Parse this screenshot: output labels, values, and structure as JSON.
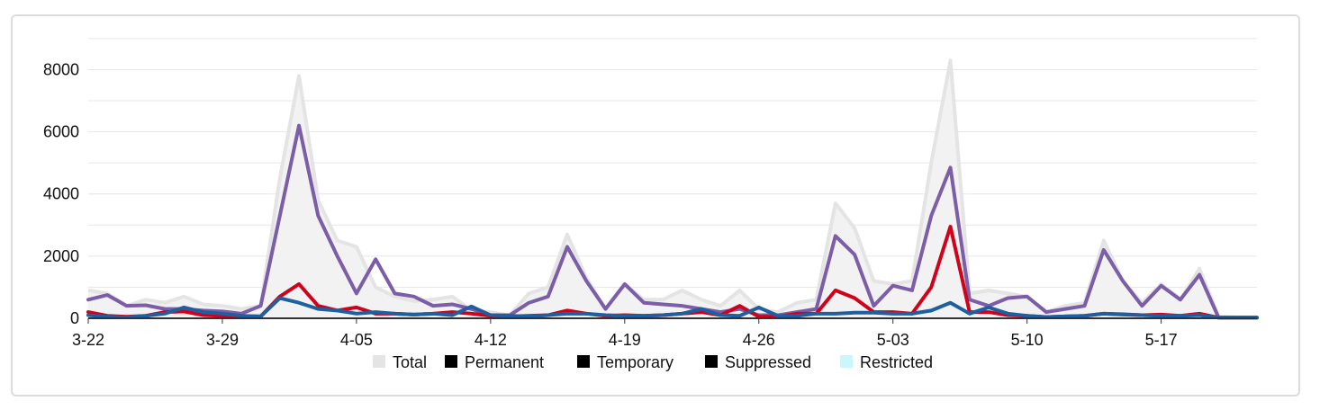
{
  "chart_data": {
    "type": "area",
    "categories": [
      "3-22",
      "3-23",
      "3-24",
      "3-25",
      "3-26",
      "3-27",
      "3-28",
      "3-29",
      "3-30",
      "3-31",
      "4-01",
      "4-02",
      "4-03",
      "4-04",
      "4-05",
      "4-06",
      "4-07",
      "4-08",
      "4-09",
      "4-10",
      "4-11",
      "4-12",
      "4-13",
      "4-14",
      "4-15",
      "4-16",
      "4-17",
      "4-18",
      "4-19",
      "4-20",
      "4-21",
      "4-22",
      "4-23",
      "4-24",
      "4-25",
      "4-26",
      "4-27",
      "4-28",
      "4-29",
      "4-30",
      "5-01",
      "5-02",
      "5-03",
      "5-04",
      "5-05",
      "5-06",
      "5-07",
      "5-08",
      "5-09",
      "5-10",
      "5-11",
      "5-12",
      "5-13",
      "5-14",
      "5-15",
      "5-16",
      "5-17",
      "5-18",
      "5-19",
      "5-20",
      "5-21",
      "5-22"
    ],
    "x_tick_labels": [
      "3-22",
      "3-29",
      "4-05",
      "4-12",
      "4-19",
      "4-26",
      "5-03",
      "5-10",
      "5-17"
    ],
    "x_tick_index": [
      0,
      7,
      14,
      21,
      28,
      35,
      42,
      49,
      56
    ],
    "y_ticks": [
      "0",
      "2000",
      "4000",
      "6000",
      "8000"
    ],
    "ylim": [
      0,
      9200
    ],
    "grid": true,
    "legend_position": "bottom",
    "series": [
      {
        "name": "Total",
        "color": "#e4e4e4",
        "style": "area",
        "values": [
          900,
          800,
          400,
          600,
          500,
          700,
          450,
          400,
          300,
          400,
          4500,
          7800,
          3800,
          2500,
          2300,
          1000,
          700,
          550,
          600,
          700,
          250,
          200,
          100,
          800,
          1000,
          2700,
          1300,
          300,
          1100,
          600,
          600,
          900,
          600,
          400,
          900,
          300,
          200,
          500,
          600,
          3700,
          2900,
          1200,
          1100,
          1200,
          5000,
          8300,
          800,
          900,
          800,
          700,
          200,
          400,
          500,
          2500,
          1200,
          500,
          1100,
          600,
          1600,
          50,
          30,
          30
        ]
      },
      {
        "name": "Permanent",
        "color": "#000000",
        "style": "hidden",
        "values": [
          600,
          750,
          400,
          420,
          300,
          300,
          250,
          220,
          150,
          400,
          3300,
          6200,
          3300,
          2000,
          800,
          1900,
          800,
          700,
          400,
          450,
          300,
          100,
          100,
          500,
          700,
          2300,
          1200,
          300,
          1100,
          500,
          450,
          400,
          300,
          200,
          300,
          100,
          100,
          200,
          300,
          2650,
          2050,
          400,
          1050,
          900,
          3300,
          4850,
          600,
          400,
          650,
          700,
          200,
          300,
          400,
          2200,
          1200,
          400,
          1050,
          600,
          1400,
          20,
          20,
          20
        ]
      },
      {
        "name": "Temporary",
        "color": "#000000",
        "style": "hidden",
        "values": [
          200,
          80,
          50,
          80,
          200,
          220,
          100,
          80,
          60,
          60,
          700,
          1100,
          400,
          250,
          350,
          150,
          150,
          120,
          150,
          200,
          150,
          80,
          60,
          80,
          100,
          250,
          150,
          80,
          100,
          80,
          100,
          150,
          200,
          100,
          400,
          50,
          50,
          150,
          150,
          900,
          650,
          200,
          200,
          150,
          1000,
          2950,
          200,
          200,
          100,
          80,
          40,
          60,
          80,
          150,
          130,
          100,
          120,
          80,
          150,
          20,
          20,
          20
        ]
      },
      {
        "name": "Suppressed",
        "color": "#000000",
        "style": "hidden",
        "values": [
          100,
          50,
          30,
          80,
          150,
          350,
          200,
          150,
          80,
          60,
          650,
          500,
          300,
          250,
          150,
          200,
          150,
          120,
          150,
          100,
          380,
          100,
          80,
          60,
          100,
          150,
          150,
          100,
          80,
          80,
          100,
          150,
          300,
          100,
          80,
          350,
          80,
          80,
          150,
          150,
          180,
          180,
          150,
          150,
          250,
          500,
          150,
          350,
          150,
          80,
          40,
          60,
          80,
          150,
          120,
          100,
          80,
          80,
          100,
          20,
          20,
          20
        ]
      },
      {
        "name": "Restricted",
        "color": "#c9f7fb",
        "style": "hidden",
        "values": [
          0,
          0,
          0,
          0,
          0,
          0,
          0,
          0,
          0,
          0,
          0,
          0,
          0,
          0,
          0,
          0,
          0,
          0,
          0,
          0,
          0,
          0,
          0,
          0,
          0,
          0,
          0,
          0,
          0,
          0,
          0,
          0,
          0,
          0,
          0,
          0,
          0,
          0,
          0,
          0,
          0,
          0,
          0,
          0,
          0,
          0,
          0,
          0,
          0,
          0,
          0,
          0,
          0,
          0,
          0,
          0,
          0,
          0,
          0,
          0,
          0,
          0
        ]
      }
    ],
    "lines": [
      {
        "color": "#7b5ea7",
        "values": [
          600,
          750,
          400,
          420,
          300,
          300,
          250,
          220,
          150,
          400,
          3300,
          6200,
          3300,
          2000,
          800,
          1900,
          800,
          700,
          400,
          450,
          300,
          100,
          100,
          500,
          700,
          2300,
          1200,
          300,
          1100,
          500,
          450,
          400,
          300,
          200,
          300,
          100,
          100,
          200,
          300,
          2650,
          2050,
          400,
          1050,
          900,
          3300,
          4850,
          600,
          400,
          650,
          700,
          200,
          300,
          400,
          2200,
          1200,
          400,
          1050,
          600,
          1400,
          20,
          20,
          20
        ]
      },
      {
        "color": "#d0021b",
        "values": [
          200,
          80,
          50,
          80,
          200,
          220,
          100,
          80,
          60,
          60,
          700,
          1100,
          400,
          250,
          350,
          150,
          150,
          120,
          150,
          200,
          150,
          80,
          60,
          80,
          100,
          250,
          150,
          80,
          100,
          80,
          100,
          150,
          200,
          100,
          400,
          50,
          50,
          150,
          150,
          900,
          650,
          200,
          200,
          150,
          1000,
          2950,
          200,
          200,
          100,
          80,
          40,
          60,
          80,
          150,
          130,
          100,
          120,
          80,
          150,
          20,
          20,
          20
        ]
      },
      {
        "color": "#1f5fa0",
        "values": [
          100,
          50,
          30,
          80,
          150,
          350,
          200,
          150,
          80,
          60,
          650,
          500,
          300,
          250,
          150,
          200,
          150,
          120,
          150,
          100,
          380,
          100,
          80,
          60,
          100,
          150,
          150,
          100,
          80,
          80,
          100,
          150,
          300,
          100,
          80,
          350,
          80,
          80,
          150,
          150,
          180,
          180,
          150,
          150,
          250,
          500,
          150,
          350,
          150,
          80,
          40,
          60,
          80,
          150,
          120,
          100,
          80,
          80,
          100,
          20,
          20,
          20
        ]
      }
    ]
  }
}
